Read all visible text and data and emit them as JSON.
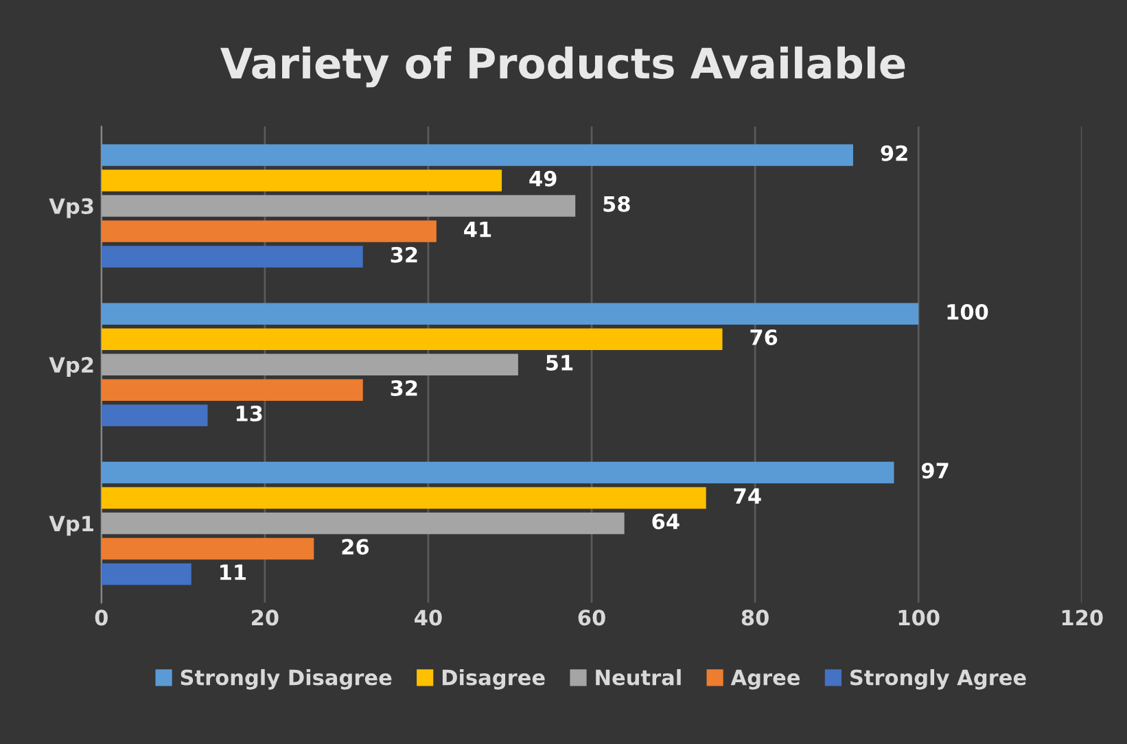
{
  "chart_data": {
    "type": "bar",
    "orientation": "horizontal",
    "title": "Variety of Products Available",
    "categories": [
      "Vp3",
      "Vp2",
      "Vp1"
    ],
    "series": [
      {
        "name": "Strongly Disagree",
        "color": "#5b9bd5",
        "values": [
          92,
          100,
          97
        ]
      },
      {
        "name": "Disagree",
        "color": "#ffc000",
        "values": [
          49,
          76,
          74
        ]
      },
      {
        "name": "Neutral",
        "color": "#a5a5a5",
        "values": [
          58,
          51,
          64
        ]
      },
      {
        "name": "Agree",
        "color": "#ed7d31",
        "values": [
          41,
          32,
          26
        ]
      },
      {
        "name": "Strongly Agree",
        "color": "#4472c4",
        "values": [
          32,
          13,
          11
        ]
      }
    ],
    "xlim": [
      0,
      120
    ],
    "xticks": [
      0,
      20,
      40,
      60,
      80,
      100,
      120
    ],
    "grid": "x",
    "legend": "bottom",
    "data_labels": true
  }
}
